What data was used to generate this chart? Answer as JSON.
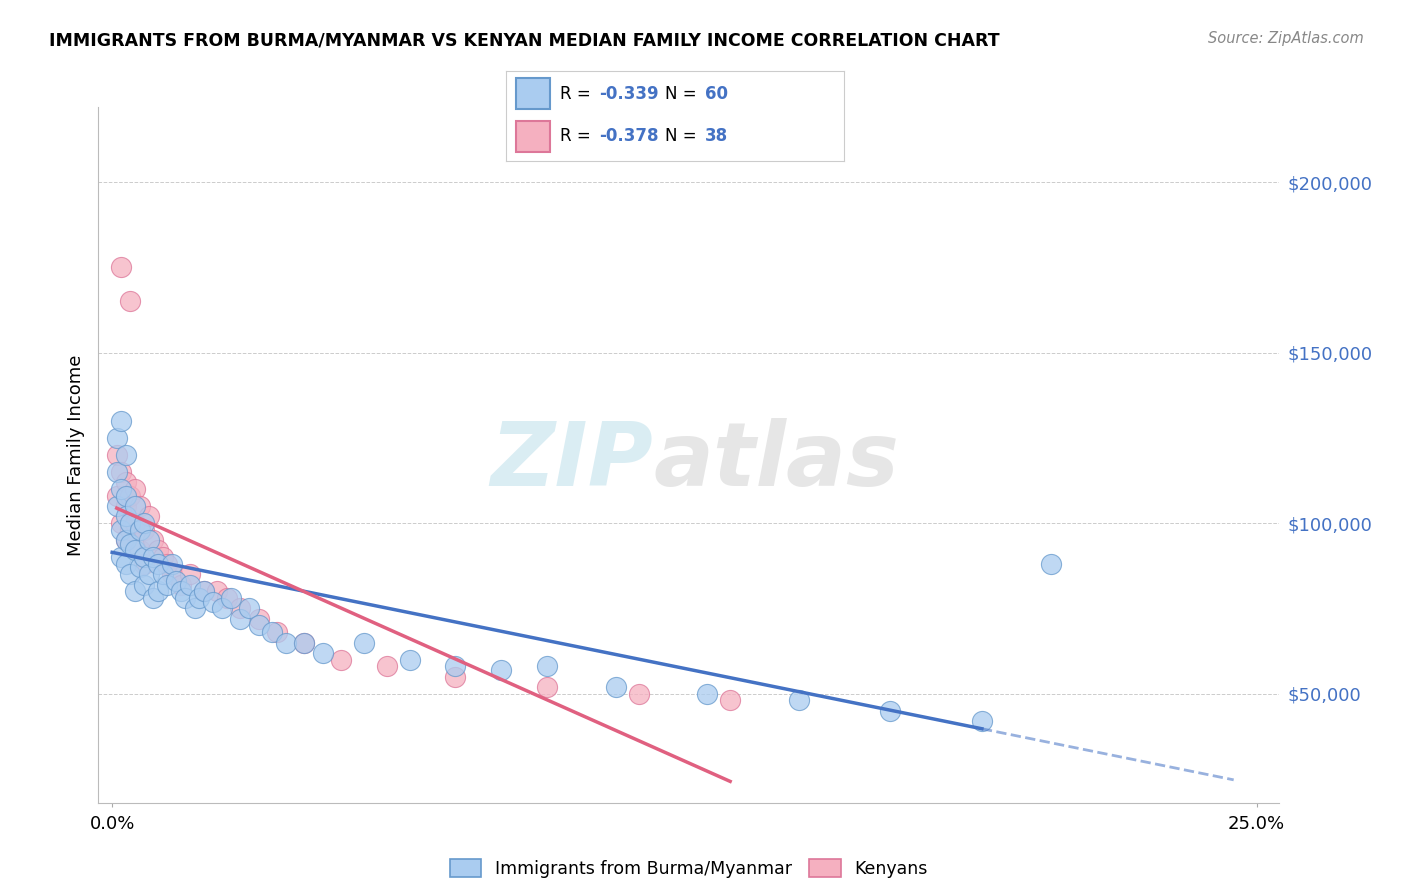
{
  "title": "IMMIGRANTS FROM BURMA/MYANMAR VS KENYAN MEDIAN FAMILY INCOME CORRELATION CHART",
  "source": "Source: ZipAtlas.com",
  "ylabel": "Median Family Income",
  "xlim": [
    -0.003,
    0.255
  ],
  "ylim": [
    18000,
    222000
  ],
  "ytick_vals": [
    50000,
    100000,
    150000,
    200000
  ],
  "ytick_labels": [
    "$50,000",
    "$100,000",
    "$150,000",
    "$200,000"
  ],
  "xtick_vals": [
    0.0,
    0.25
  ],
  "xtick_labels": [
    "0.0%",
    "25.0%"
  ],
  "R_blue": -0.339,
  "N_blue": 60,
  "R_pink": -0.378,
  "N_pink": 38,
  "blue_fill": "#aaccf0",
  "blue_edge": "#6699cc",
  "pink_fill": "#f5b0c0",
  "pink_edge": "#dd7799",
  "blue_line": "#4472c4",
  "pink_line": "#e06080",
  "legend1": "Immigrants from Burma/Myanmar",
  "legend2": "Kenyans",
  "blue_x": [
    0.001,
    0.001,
    0.002,
    0.002,
    0.002,
    0.003,
    0.003,
    0.003,
    0.003,
    0.004,
    0.004,
    0.004,
    0.005,
    0.005,
    0.005,
    0.006,
    0.006,
    0.007,
    0.007,
    0.007,
    0.008,
    0.008,
    0.009,
    0.009,
    0.01,
    0.01,
    0.011,
    0.012,
    0.013,
    0.014,
    0.015,
    0.016,
    0.017,
    0.018,
    0.019,
    0.02,
    0.022,
    0.024,
    0.026,
    0.028,
    0.03,
    0.032,
    0.035,
    0.038,
    0.042,
    0.046,
    0.055,
    0.065,
    0.075,
    0.085,
    0.095,
    0.11,
    0.13,
    0.15,
    0.17,
    0.19,
    0.001,
    0.002,
    0.003,
    0.205
  ],
  "blue_y": [
    115000,
    105000,
    110000,
    98000,
    90000,
    108000,
    102000,
    95000,
    88000,
    100000,
    94000,
    85000,
    105000,
    92000,
    80000,
    98000,
    87000,
    100000,
    90000,
    82000,
    95000,
    85000,
    90000,
    78000,
    88000,
    80000,
    85000,
    82000,
    88000,
    83000,
    80000,
    78000,
    82000,
    75000,
    78000,
    80000,
    77000,
    75000,
    78000,
    72000,
    75000,
    70000,
    68000,
    65000,
    65000,
    62000,
    65000,
    60000,
    58000,
    57000,
    58000,
    52000,
    50000,
    48000,
    45000,
    42000,
    125000,
    130000,
    120000,
    88000
  ],
  "pink_x": [
    0.001,
    0.001,
    0.002,
    0.002,
    0.003,
    0.003,
    0.003,
    0.004,
    0.004,
    0.005,
    0.005,
    0.006,
    0.006,
    0.007,
    0.007,
    0.008,
    0.009,
    0.01,
    0.011,
    0.012,
    0.013,
    0.015,
    0.017,
    0.02,
    0.023,
    0.025,
    0.028,
    0.032,
    0.036,
    0.042,
    0.05,
    0.06,
    0.075,
    0.095,
    0.115,
    0.135,
    0.002,
    0.004
  ],
  "pink_y": [
    120000,
    108000,
    115000,
    100000,
    112000,
    105000,
    95000,
    108000,
    98000,
    110000,
    100000,
    105000,
    92000,
    98000,
    88000,
    102000,
    95000,
    92000,
    90000,
    88000,
    85000,
    82000,
    85000,
    80000,
    80000,
    78000,
    75000,
    72000,
    68000,
    65000,
    60000,
    58000,
    55000,
    52000,
    50000,
    48000,
    175000,
    165000
  ]
}
